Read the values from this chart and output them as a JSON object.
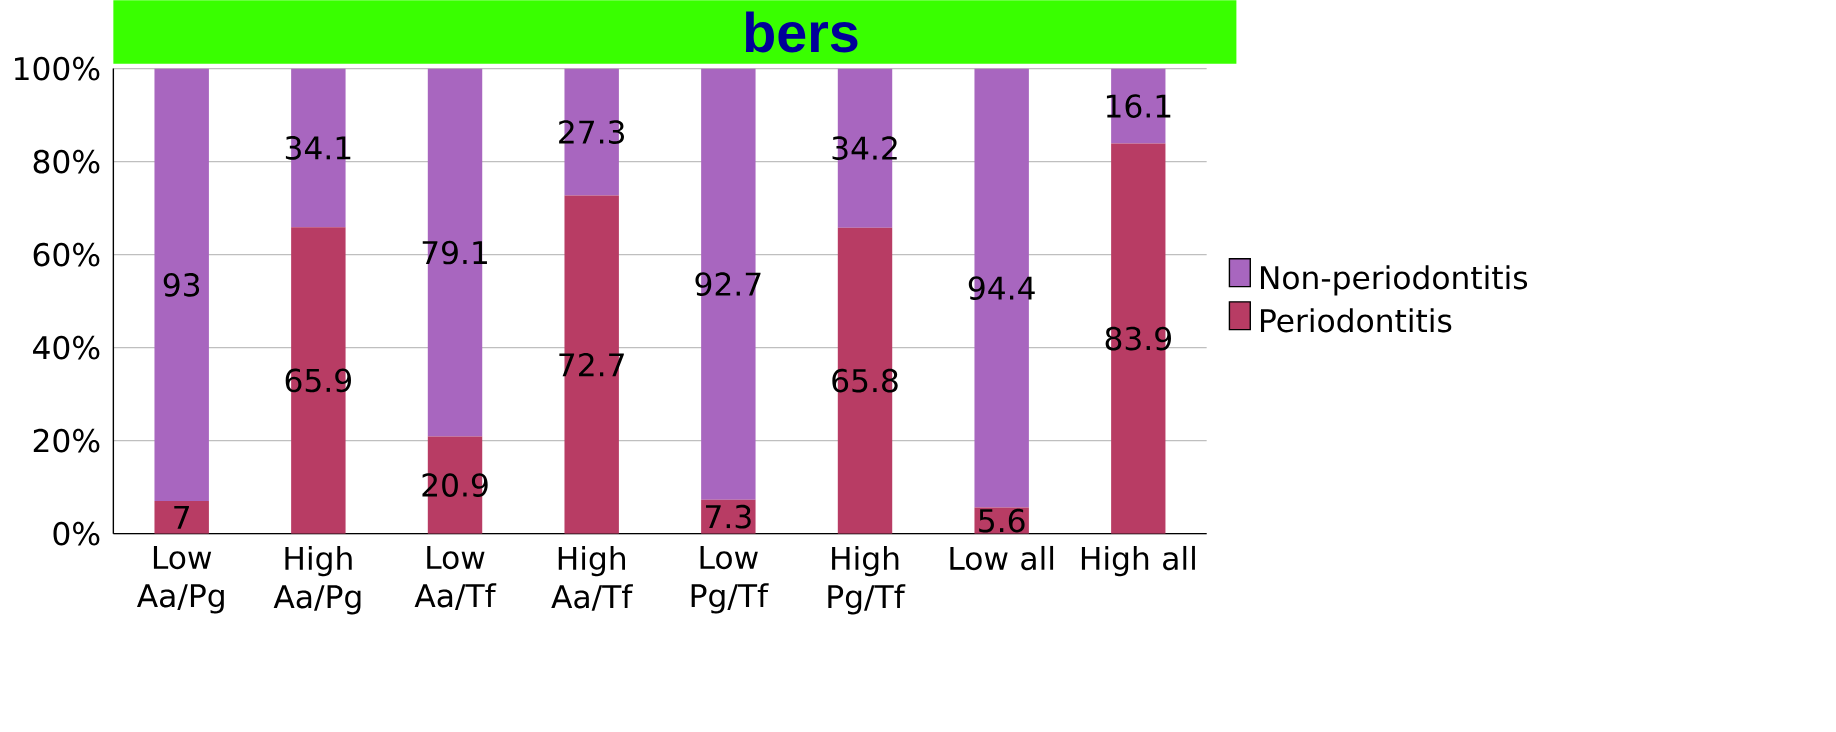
{
  "chart_data": {
    "type": "bar",
    "stacked": true,
    "title": "bers",
    "categories": [
      "Low Aa/Pg",
      "High Aa/Pg",
      "Low Aa/Tf",
      "High Aa/Tf",
      "Low Pg/Tf",
      "High Pg/Tf",
      "Low all",
      "High all"
    ],
    "series": [
      {
        "name": "Periodontitis",
        "color": "#b83c64",
        "values": [
          7,
          65.9,
          20.9,
          72.7,
          7.3,
          65.8,
          5.6,
          83.9
        ]
      },
      {
        "name": "Non-periodontitis",
        "color": "#a866bf",
        "values": [
          93,
          34.1,
          79.1,
          27.3,
          92.7,
          34.2,
          94.4,
          16.1
        ]
      }
    ],
    "ylim": [
      0,
      100
    ],
    "yticks": [
      {
        "value": 0,
        "label": "0%"
      },
      {
        "value": 20,
        "label": "20%"
      },
      {
        "value": 40,
        "label": "40%"
      },
      {
        "value": 60,
        "label": "60%"
      },
      {
        "value": 80,
        "label": "80%"
      },
      {
        "value": 100,
        "label": "100%"
      }
    ],
    "grid": "y",
    "legend": "right",
    "data_labels": true
  }
}
